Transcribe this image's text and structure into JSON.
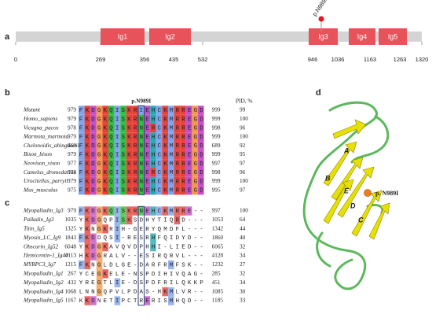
{
  "panel_a": {
    "label": "a",
    "mutation": "p.N989I",
    "domains": [
      "Ig1",
      "Ig2",
      "Ig3",
      "Ig4",
      "Ig5"
    ],
    "ticks": [
      "0",
      "269",
      "356",
      "435",
      "532",
      "946",
      "1036",
      "1163",
      "1263",
      "1320"
    ]
  },
  "panel_b": {
    "label": "b",
    "mutation": "p.N989I",
    "pid_header": "PID, %",
    "rows": [
      {
        "name": "Mutant",
        "start": "979",
        "sequence": "FKDGKQISKRIEHCKMRREGD",
        "end": "999",
        "pid": "99"
      },
      {
        "name": "Homo_sapiens",
        "start": "979",
        "sequence": "FKDGKQISKRNEHCKMRREGD",
        "end": "999",
        "pid": "100"
      },
      {
        "name": "Vicugna_pacos",
        "start": "978",
        "sequence": "FKDGKQISKRNERCKMRREGD",
        "end": "998",
        "pid": "96"
      },
      {
        "name": "Marmota_marmota",
        "start": "979",
        "sequence": "FKDGKQISKRNEHCKMRREGD",
        "end": "999",
        "pid": "100"
      },
      {
        "name": "Chelonoidis_abingdonii",
        "start": "669",
        "sequence": "FKDGKQISKRNEHCKMRREGD",
        "end": "689",
        "pid": "92"
      },
      {
        "name": "Bison_bison",
        "start": "979",
        "sequence": "FKDGKQISKRNEHCKMRREGD",
        "end": "999",
        "pid": "95"
      },
      {
        "name": "Neovison_vison",
        "start": "977",
        "sequence": "FKDGKQISKRNEHCKMRREGD",
        "end": "997",
        "pid": "97"
      },
      {
        "name": "Camelus_dromedarius",
        "start": "978",
        "sequence": "FKDGKQISKRNERCKMRREGD",
        "end": "998",
        "pid": "96"
      },
      {
        "name": "Urocitellus_parryii",
        "start": "979",
        "sequence": "FKDGKQISKRNEHCKMRREGD",
        "end": "999",
        "pid": "100"
      },
      {
        "name": "Mus_musculus",
        "start": "975",
        "sequence": "FKDGKQISKRNEHCKMRREGD",
        "end": "995",
        "pid": "97"
      }
    ]
  },
  "panel_c": {
    "label": "c",
    "rows": [
      {
        "name": "Myopalladin_Ig3",
        "start": "979",
        "sequence": "FKDGKQISKRNEHCKMRRE--",
        "end": "997",
        "pid": "100"
      },
      {
        "name": "Palladin_Ig3",
        "start": "1035",
        "sequence": "YKDGQPISKSDHYTIQRD---",
        "end": "1053",
        "pid": "64"
      },
      {
        "name": "Titin_Ig5",
        "start": "1325",
        "sequence": "YKNGKRIH-GERYQMDFL---",
        "end": "1342",
        "pid": "44"
      },
      {
        "name": "Myosin_LC_Ig9",
        "start": "1843",
        "sequence": "FKDDQSI-RESRHFQIDYD--",
        "end": "1860",
        "pid": "40"
      },
      {
        "name": "Obscurin_Ig52",
        "start": "6048",
        "sequence": "YKDGKAVQVDPHHI-LIED--",
        "end": "6065",
        "pid": "32"
      },
      {
        "name": "Hemicentin-1_Ig40",
        "start": "4113",
        "sequence": "HKDGRALV--ESIRQRVL---",
        "end": "4128",
        "pid": "34"
      },
      {
        "name": "MYBPC3_Ig7",
        "start": "1215",
        "sequence": "FKNGLDLGE-DARFRMFSK--",
        "end": "1232",
        "pid": "27"
      },
      {
        "name": "Myopalladin_Ig1",
        "start": "267",
        "sequence": "YCEGKELE-NSPDIHIVQAG-",
        "end": "285",
        "pid": "32"
      },
      {
        "name": "Myopalladin_Ig2",
        "start": "432",
        "sequence": "YREGTLIE-DSPDFRILQKKP",
        "end": "451",
        "pid": "34"
      },
      {
        "name": "Myopalladin_Ig4",
        "start": "1068",
        "sequence": "LNNGQPVLPDAS-HKMLVR--",
        "end": "1085",
        "pid": "30"
      },
      {
        "name": "Myopalladin_Ig5",
        "start": "1167",
        "sequence": "KKDNETIPCTRERISMHQD--",
        "end": "1185",
        "pid": "33"
      }
    ]
  },
  "panel_d": {
    "label": "d",
    "mutation": "p. N989I",
    "strands": [
      "A",
      "B",
      "C",
      "D",
      "E"
    ]
  }
}
